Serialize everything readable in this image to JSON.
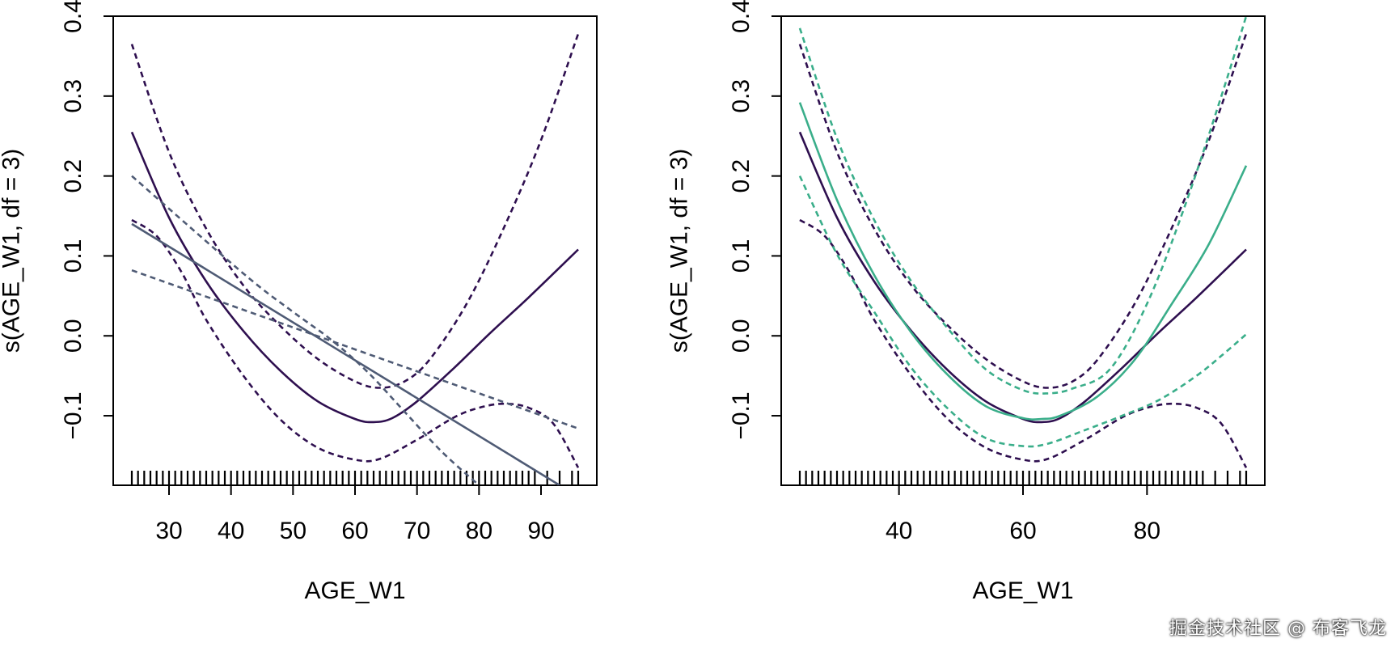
{
  "chart_data": [
    {
      "type": "line",
      "xlabel": "AGE_W1",
      "ylabel": "s(AGE_W1, df = 3)",
      "xlim": [
        21,
        99
      ],
      "ylim": [
        -0.187,
        0.4
      ],
      "xticks": [
        30,
        40,
        50,
        60,
        70,
        80,
        90
      ],
      "xtick_labels": [
        "30",
        "40",
        "50",
        "60",
        "70",
        "80",
        "90"
      ],
      "yticks": [
        -0.1,
        0.0,
        0.1,
        0.2,
        0.3,
        0.4
      ],
      "ytick_labels": [
        "−0.1",
        "0.0",
        "0.1",
        "0.2",
        "0.3",
        "0.4"
      ],
      "series": [
        {
          "name": "spline fit",
          "style": "solid",
          "color": "#2e0f4f",
          "x": [
            24,
            30,
            36,
            42,
            48,
            54,
            60,
            63,
            66,
            70,
            76,
            82,
            88,
            96
          ],
          "y": [
            0.255,
            0.148,
            0.068,
            0.006,
            -0.044,
            -0.082,
            -0.104,
            -0.108,
            -0.103,
            -0.082,
            -0.04,
            0.005,
            0.048,
            0.108
          ]
        },
        {
          "name": "spline upper band",
          "style": "dashed",
          "color": "#2e0f4f",
          "x": [
            24,
            30,
            36,
            42,
            48,
            54,
            60,
            64,
            68,
            72,
            78,
            84,
            90,
            96
          ],
          "y": [
            0.365,
            0.23,
            0.134,
            0.063,
            0.012,
            -0.029,
            -0.057,
            -0.065,
            -0.057,
            -0.03,
            0.04,
            0.135,
            0.245,
            0.378
          ]
        },
        {
          "name": "spline lower band",
          "style": "dashed",
          "color": "#2e0f4f",
          "x": [
            24,
            28,
            32,
            36,
            42,
            48,
            54,
            60,
            64,
            70,
            76,
            80,
            84,
            88,
            92,
            96
          ],
          "y": [
            0.145,
            0.125,
            0.08,
            0.02,
            -0.05,
            -0.105,
            -0.14,
            -0.155,
            -0.154,
            -0.13,
            -0.102,
            -0.09,
            -0.085,
            -0.09,
            -0.11,
            -0.165
          ]
        },
        {
          "name": "linear fit",
          "style": "solid",
          "color": "#4f5b75",
          "x": [
            24,
            93
          ],
          "y": [
            0.14,
            -0.187
          ]
        },
        {
          "name": "linear upper band",
          "style": "dashed",
          "color": "#4f5b75",
          "x": [
            24,
            96
          ],
          "y": [
            0.082,
            -0.116
          ]
        },
        {
          "name": "linear lower band",
          "style": "dashed",
          "color": "#4f5b75",
          "x": [
            24,
            42,
            50,
            56,
            62,
            68,
            74,
            80
          ],
          "y": [
            0.2,
            0.078,
            0.03,
            -0.004,
            -0.045,
            -0.095,
            -0.145,
            -0.187
          ]
        }
      ]
    },
    {
      "type": "line",
      "xlabel": "AGE_W1",
      "ylabel": "s(AGE_W1, df = 3)",
      "xlim": [
        21,
        99
      ],
      "ylim": [
        -0.187,
        0.4
      ],
      "xticks": [
        40,
        60,
        80
      ],
      "xtick_labels": [
        "40",
        "60",
        "80"
      ],
      "yticks": [
        -0.1,
        0.0,
        0.1,
        0.2,
        0.3,
        0.4
      ],
      "ytick_labels": [
        "−0.1",
        "0.0",
        "0.1",
        "0.2",
        "0.3",
        "0.4"
      ],
      "series": [
        {
          "name": "spline fit (purple)",
          "style": "solid",
          "color": "#2e0f4f",
          "x": [
            24,
            30,
            36,
            42,
            48,
            54,
            60,
            63,
            66,
            70,
            76,
            82,
            88,
            96
          ],
          "y": [
            0.255,
            0.148,
            0.068,
            0.006,
            -0.044,
            -0.082,
            -0.104,
            -0.108,
            -0.103,
            -0.082,
            -0.04,
            0.005,
            0.048,
            0.108
          ]
        },
        {
          "name": "purple upper band",
          "style": "dashed",
          "color": "#2e0f4f",
          "x": [
            24,
            30,
            36,
            42,
            48,
            54,
            60,
            64,
            68,
            72,
            78,
            84,
            90,
            96
          ],
          "y": [
            0.365,
            0.23,
            0.134,
            0.063,
            0.012,
            -0.029,
            -0.057,
            -0.065,
            -0.057,
            -0.03,
            0.04,
            0.135,
            0.245,
            0.378
          ]
        },
        {
          "name": "purple lower band",
          "style": "dashed",
          "color": "#2e0f4f",
          "x": [
            24,
            28,
            32,
            36,
            42,
            48,
            54,
            60,
            64,
            70,
            76,
            80,
            84,
            88,
            92,
            96
          ],
          "y": [
            0.145,
            0.125,
            0.08,
            0.02,
            -0.05,
            -0.105,
            -0.14,
            -0.155,
            -0.154,
            -0.13,
            -0.102,
            -0.09,
            -0.085,
            -0.09,
            -0.11,
            -0.165
          ]
        },
        {
          "name": "spline fit (green)",
          "style": "solid",
          "color": "#3aae8a",
          "x": [
            24,
            30,
            36,
            42,
            48,
            54,
            60,
            63,
            66,
            72,
            78,
            84,
            90,
            96
          ],
          "y": [
            0.292,
            0.17,
            0.076,
            0.004,
            -0.05,
            -0.088,
            -0.103,
            -0.104,
            -0.1,
            -0.076,
            -0.03,
            0.04,
            0.115,
            0.213
          ]
        },
        {
          "name": "green upper band",
          "style": "dashed",
          "color": "#3aae8a",
          "x": [
            24,
            30,
            36,
            42,
            48,
            54,
            60,
            64,
            68,
            74,
            80,
            86,
            92,
            96
          ],
          "y": [
            0.385,
            0.247,
            0.145,
            0.068,
            0.008,
            -0.042,
            -0.068,
            -0.072,
            -0.066,
            -0.042,
            0.04,
            0.16,
            0.3,
            0.4
          ]
        },
        {
          "name": "green lower band",
          "style": "dashed",
          "color": "#3aae8a",
          "x": [
            24,
            30,
            36,
            42,
            48,
            54,
            60,
            64,
            70,
            76,
            82,
            88,
            92,
            96
          ],
          "y": [
            0.2,
            0.102,
            0.03,
            -0.04,
            -0.092,
            -0.128,
            -0.138,
            -0.135,
            -0.118,
            -0.1,
            -0.08,
            -0.05,
            -0.025,
            0.002
          ]
        }
      ]
    }
  ],
  "rug_ages": [
    24,
    25,
    26,
    27,
    28,
    29,
    30,
    31,
    32,
    33,
    34,
    35,
    36,
    37,
    38,
    39,
    40,
    41,
    42,
    43,
    44,
    45,
    46,
    47,
    48,
    49,
    50,
    51,
    52,
    53,
    54,
    55,
    56,
    57,
    58,
    59,
    60,
    61,
    62,
    63,
    64,
    65,
    66,
    67,
    68,
    69,
    70,
    71,
    72,
    73,
    74,
    75,
    76,
    77,
    78,
    79,
    80,
    81,
    82,
    83,
    84,
    85,
    86,
    87,
    88,
    89,
    91,
    93,
    95,
    96
  ],
  "watermark": "掘金技术社区 @ 布客飞龙"
}
